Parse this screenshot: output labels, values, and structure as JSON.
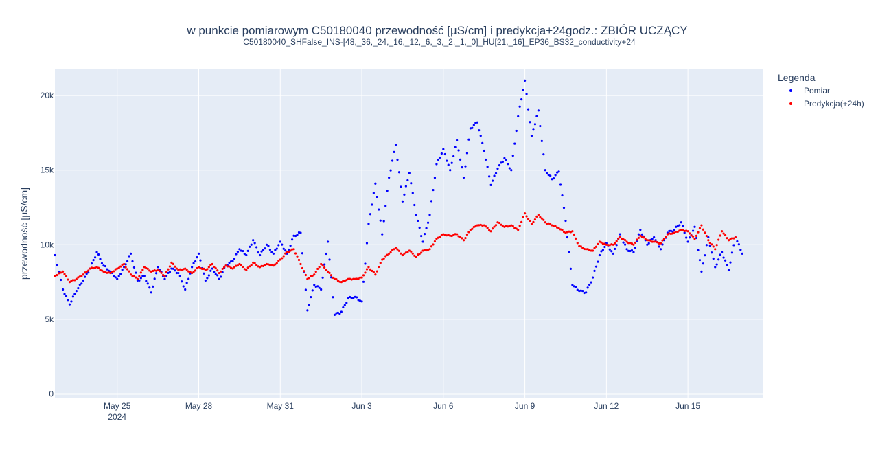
{
  "chart_data": {
    "type": "scatter",
    "title": "w punkcie pomiarowym C50180040 przewodność [µS/cm] i predykcja+24godz.: ZBIÓR UCZĄCY",
    "subtitle": "C50180040_SHFalse_INS-[48,_36,_24,_16,_12,_6,_3,_2,_1,_0]_HU[21,_16]_EP36_BS32_conductivity+24",
    "ylabel": "przewodność [µS/cm]",
    "xlabel": "",
    "x_range": [
      "2024-05-22 17:00",
      "2024-06-17 18:00"
    ],
    "ylim": [
      -300,
      21800
    ],
    "x_ticks": [
      {
        "date": "2024-05-25",
        "label": "May 25",
        "sub": "2024"
      },
      {
        "date": "2024-05-28",
        "label": "May 28",
        "sub": ""
      },
      {
        "date": "2024-05-31",
        "label": "May 31",
        "sub": ""
      },
      {
        "date": "2024-06-03",
        "label": "Jun 3",
        "sub": ""
      },
      {
        "date": "2024-06-06",
        "label": "Jun 6",
        "sub": ""
      },
      {
        "date": "2024-06-09",
        "label": "Jun 9",
        "sub": ""
      },
      {
        "date": "2024-06-12",
        "label": "Jun 12",
        "sub": ""
      },
      {
        "date": "2024-06-15",
        "label": "Jun 15",
        "sub": ""
      }
    ],
    "y_ticks": [
      {
        "value": 0,
        "label": "0"
      },
      {
        "value": 5000,
        "label": "5k"
      },
      {
        "value": 10000,
        "label": "10k"
      },
      {
        "value": 15000,
        "label": "15k"
      },
      {
        "value": 20000,
        "label": "20k"
      }
    ],
    "grid": true,
    "legend": {
      "title": "Legenda",
      "position": "right"
    },
    "series": [
      {
        "name": "Pomiar",
        "color": "#0000ff",
        "points": [
          [
            "2024-05-22 17:00",
            9300
          ],
          [
            "2024-05-23 00:00",
            7000
          ],
          [
            "2024-05-23 06:00",
            6000
          ],
          [
            "2024-05-23 12:00",
            6900
          ],
          [
            "2024-05-23 18:00",
            7600
          ],
          [
            "2024-05-24 00:00",
            8400
          ],
          [
            "2024-05-24 06:00",
            9500
          ],
          [
            "2024-05-24 12:00",
            8600
          ],
          [
            "2024-05-24 18:00",
            8200
          ],
          [
            "2024-05-25 00:00",
            7700
          ],
          [
            "2024-05-25 06:00",
            8500
          ],
          [
            "2024-05-25 12:00",
            9400
          ],
          [
            "2024-05-25 18:00",
            7600
          ],
          [
            "2024-05-26 00:00",
            7900
          ],
          [
            "2024-05-26 06:00",
            6800
          ],
          [
            "2024-05-26 12:00",
            8500
          ],
          [
            "2024-05-26 18:00",
            7700
          ],
          [
            "2024-05-27 00:00",
            8400
          ],
          [
            "2024-05-27 06:00",
            8100
          ],
          [
            "2024-05-27 12:00",
            7000
          ],
          [
            "2024-05-27 18:00",
            8500
          ],
          [
            "2024-05-28 00:00",
            9400
          ],
          [
            "2024-05-28 06:00",
            7600
          ],
          [
            "2024-05-28 12:00",
            8400
          ],
          [
            "2024-05-28 18:00",
            7700
          ],
          [
            "2024-05-29 00:00",
            8600
          ],
          [
            "2024-05-29 06:00",
            8900
          ],
          [
            "2024-05-29 12:00",
            9700
          ],
          [
            "2024-05-29 18:00",
            9300
          ],
          [
            "2024-05-30 00:00",
            10300
          ],
          [
            "2024-05-30 06:00",
            9300
          ],
          [
            "2024-05-30 12:00",
            10000
          ],
          [
            "2024-05-30 18:00",
            9400
          ],
          [
            "2024-05-31 00:00",
            10200
          ],
          [
            "2024-05-31 06:00",
            9400
          ],
          [
            "2024-05-31 12:00",
            10600
          ],
          [
            "2024-05-31 18:00",
            10800
          ],
          [
            "2024-06-01 00:00",
            5600
          ],
          [
            "2024-06-01 06:00",
            7300
          ],
          [
            "2024-06-01 12:00",
            7000
          ],
          [
            "2024-06-01 18:00",
            10200
          ],
          [
            "2024-06-02 00:00",
            5300
          ],
          [
            "2024-06-02 06:00",
            5500
          ],
          [
            "2024-06-02 12:00",
            6400
          ],
          [
            "2024-06-02 18:00",
            6500
          ],
          [
            "2024-06-03 00:00",
            6200
          ],
          [
            "2024-06-03 06:00",
            11400
          ],
          [
            "2024-06-03 12:00",
            14100
          ],
          [
            "2024-06-03 18:00",
            10700
          ],
          [
            "2024-06-04 00:00",
            14500
          ],
          [
            "2024-06-04 06:00",
            16700
          ],
          [
            "2024-06-04 12:00",
            12900
          ],
          [
            "2024-06-04 18:00",
            14800
          ],
          [
            "2024-06-05 00:00",
            12000
          ],
          [
            "2024-06-05 06:00",
            10200
          ],
          [
            "2024-06-05 12:00",
            12000
          ],
          [
            "2024-06-05 18:00",
            15400
          ],
          [
            "2024-06-06 00:00",
            16400
          ],
          [
            "2024-06-06 06:00",
            15000
          ],
          [
            "2024-06-06 12:00",
            17000
          ],
          [
            "2024-06-06 18:00",
            14500
          ],
          [
            "2024-06-07 00:00",
            17800
          ],
          [
            "2024-06-07 06:00",
            18200
          ],
          [
            "2024-06-07 12:00",
            16300
          ],
          [
            "2024-06-07 18:00",
            14000
          ],
          [
            "2024-06-08 00:00",
            15100
          ],
          [
            "2024-06-08 06:00",
            15800
          ],
          [
            "2024-06-08 12:00",
            15000
          ],
          [
            "2024-06-08 18:00",
            18600
          ],
          [
            "2024-06-09 00:00",
            21000
          ],
          [
            "2024-06-09 06:00",
            17300
          ],
          [
            "2024-06-09 12:00",
            19000
          ],
          [
            "2024-06-09 18:00",
            15000
          ],
          [
            "2024-06-10 00:00",
            14400
          ],
          [
            "2024-06-10 06:00",
            14900
          ],
          [
            "2024-06-10 12:00",
            11600
          ],
          [
            "2024-06-10 18:00",
            7300
          ],
          [
            "2024-06-11 00:00",
            6900
          ],
          [
            "2024-06-11 06:00",
            6800
          ],
          [
            "2024-06-11 12:00",
            7800
          ],
          [
            "2024-06-11 18:00",
            9300
          ],
          [
            "2024-06-12 00:00",
            10100
          ],
          [
            "2024-06-12 06:00",
            9400
          ],
          [
            "2024-06-12 12:00",
            10700
          ],
          [
            "2024-06-12 18:00",
            9700
          ],
          [
            "2024-06-13 00:00",
            9500
          ],
          [
            "2024-06-13 06:00",
            11000
          ],
          [
            "2024-06-13 12:00",
            10000
          ],
          [
            "2024-06-13 18:00",
            10500
          ],
          [
            "2024-06-14 00:00",
            9700
          ],
          [
            "2024-06-14 06:00",
            10800
          ],
          [
            "2024-06-14 12:00",
            11000
          ],
          [
            "2024-06-14 18:00",
            11500
          ],
          [
            "2024-06-15 00:00",
            10200
          ],
          [
            "2024-06-15 06:00",
            11200
          ],
          [
            "2024-06-15 12:00",
            8200
          ],
          [
            "2024-06-15 18:00",
            10500
          ],
          [
            "2024-06-16 00:00",
            8500
          ],
          [
            "2024-06-16 06:00",
            9500
          ],
          [
            "2024-06-16 12:00",
            8300
          ],
          [
            "2024-06-16 18:00",
            10500
          ],
          [
            "2024-06-17 00:00",
            9400
          ]
        ]
      },
      {
        "name": "Predykcja(+24h)",
        "color": "#ff0000",
        "points": [
          [
            "2024-05-22 17:00",
            7900
          ],
          [
            "2024-05-23 00:00",
            8200
          ],
          [
            "2024-05-23 06:00",
            7500
          ],
          [
            "2024-05-23 12:00",
            7700
          ],
          [
            "2024-05-23 18:00",
            8000
          ],
          [
            "2024-05-24 00:00",
            8400
          ],
          [
            "2024-05-24 06:00",
            8500
          ],
          [
            "2024-05-24 12:00",
            8200
          ],
          [
            "2024-05-24 18:00",
            8100
          ],
          [
            "2024-05-25 00:00",
            8400
          ],
          [
            "2024-05-25 06:00",
            8700
          ],
          [
            "2024-05-25 12:00",
            8000
          ],
          [
            "2024-05-25 18:00",
            7700
          ],
          [
            "2024-05-26 00:00",
            8500
          ],
          [
            "2024-05-26 06:00",
            8200
          ],
          [
            "2024-05-26 12:00",
            8300
          ],
          [
            "2024-05-26 18:00",
            7900
          ],
          [
            "2024-05-27 00:00",
            8800
          ],
          [
            "2024-05-27 06:00",
            8300
          ],
          [
            "2024-05-27 12:00",
            8400
          ],
          [
            "2024-05-27 18:00",
            8100
          ],
          [
            "2024-05-28 00:00",
            8500
          ],
          [
            "2024-05-28 06:00",
            8300
          ],
          [
            "2024-05-28 12:00",
            8700
          ],
          [
            "2024-05-28 18:00",
            8100
          ],
          [
            "2024-05-29 00:00",
            8600
          ],
          [
            "2024-05-29 06:00",
            8400
          ],
          [
            "2024-05-29 12:00",
            8700
          ],
          [
            "2024-05-29 18:00",
            8300
          ],
          [
            "2024-05-30 00:00",
            8800
          ],
          [
            "2024-05-30 06:00",
            8500
          ],
          [
            "2024-05-30 12:00",
            8700
          ],
          [
            "2024-05-30 18:00",
            8600
          ],
          [
            "2024-05-31 00:00",
            9000
          ],
          [
            "2024-05-31 06:00",
            9500
          ],
          [
            "2024-05-31 12:00",
            9700
          ],
          [
            "2024-05-31 18:00",
            8700
          ],
          [
            "2024-06-01 00:00",
            7700
          ],
          [
            "2024-06-01 06:00",
            8000
          ],
          [
            "2024-06-01 12:00",
            8700
          ],
          [
            "2024-06-01 18:00",
            8200
          ],
          [
            "2024-06-02 00:00",
            7700
          ],
          [
            "2024-06-02 06:00",
            7500
          ],
          [
            "2024-06-02 12:00",
            7700
          ],
          [
            "2024-06-02 18:00",
            7700
          ],
          [
            "2024-06-03 00:00",
            7800
          ],
          [
            "2024-06-03 06:00",
            8500
          ],
          [
            "2024-06-03 12:00",
            8000
          ],
          [
            "2024-06-03 18:00",
            9000
          ],
          [
            "2024-06-04 00:00",
            9400
          ],
          [
            "2024-06-04 06:00",
            9800
          ],
          [
            "2024-06-04 12:00",
            9300
          ],
          [
            "2024-06-04 18:00",
            9600
          ],
          [
            "2024-06-05 00:00",
            9200
          ],
          [
            "2024-06-05 06:00",
            9600
          ],
          [
            "2024-06-05 12:00",
            9700
          ],
          [
            "2024-06-05 18:00",
            10400
          ],
          [
            "2024-06-06 00:00",
            10700
          ],
          [
            "2024-06-06 06:00",
            10600
          ],
          [
            "2024-06-06 12:00",
            10700
          ],
          [
            "2024-06-06 18:00",
            10300
          ],
          [
            "2024-06-07 00:00",
            11000
          ],
          [
            "2024-06-07 06:00",
            11300
          ],
          [
            "2024-06-07 12:00",
            11300
          ],
          [
            "2024-06-07 18:00",
            10900
          ],
          [
            "2024-06-08 00:00",
            11500
          ],
          [
            "2024-06-08 06:00",
            11200
          ],
          [
            "2024-06-08 12:00",
            11300
          ],
          [
            "2024-06-08 18:00",
            11000
          ],
          [
            "2024-06-09 00:00",
            12100
          ],
          [
            "2024-06-09 06:00",
            11400
          ],
          [
            "2024-06-09 12:00",
            12000
          ],
          [
            "2024-06-09 18:00",
            11500
          ],
          [
            "2024-06-10 00:00",
            11300
          ],
          [
            "2024-06-10 06:00",
            11100
          ],
          [
            "2024-06-10 12:00",
            10800
          ],
          [
            "2024-06-10 18:00",
            10900
          ],
          [
            "2024-06-11 00:00",
            9900
          ],
          [
            "2024-06-11 06:00",
            9700
          ],
          [
            "2024-06-11 12:00",
            9600
          ],
          [
            "2024-06-11 18:00",
            10200
          ],
          [
            "2024-06-12 00:00",
            10000
          ],
          [
            "2024-06-12 06:00",
            10000
          ],
          [
            "2024-06-12 12:00",
            10500
          ],
          [
            "2024-06-12 18:00",
            10200
          ],
          [
            "2024-06-13 00:00",
            10000
          ],
          [
            "2024-06-13 06:00",
            10600
          ],
          [
            "2024-06-13 12:00",
            10300
          ],
          [
            "2024-06-13 18:00",
            10200
          ],
          [
            "2024-06-14 00:00",
            10100
          ],
          [
            "2024-06-14 06:00",
            10700
          ],
          [
            "2024-06-14 12:00",
            10800
          ],
          [
            "2024-06-14 18:00",
            11000
          ],
          [
            "2024-06-15 00:00",
            10900
          ],
          [
            "2024-06-15 06:00",
            10400
          ],
          [
            "2024-06-15 12:00",
            11300
          ],
          [
            "2024-06-15 18:00",
            10300
          ],
          [
            "2024-06-16 00:00",
            9700
          ],
          [
            "2024-06-16 06:00",
            10900
          ],
          [
            "2024-06-16 12:00",
            10300
          ],
          [
            "2024-06-16 18:00",
            10500
          ]
        ]
      }
    ]
  }
}
